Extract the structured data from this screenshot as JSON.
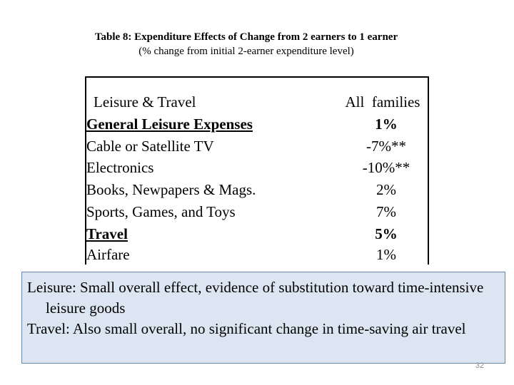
{
  "title": {
    "line1": "Table 8: Expenditure Effects of Change from 2 earners to 1 earner",
    "line2": "(% change from initial 2-earner expenditure level)"
  },
  "table": {
    "header_label": "Leisure & Travel",
    "header_value": "All  families",
    "rows": [
      {
        "label": "General Leisure Expenses",
        "value": "1%"
      },
      {
        "label": "Cable or Satellite TV",
        "value": "-7%**"
      },
      {
        "label": "Electronics",
        "value": "-10%**"
      },
      {
        "label": "Books, Newpapers & Mags.",
        "value": "2%"
      },
      {
        "label": "Sports, Games, and Toys",
        "value": "7%"
      },
      {
        "label": "Travel",
        "value": "5%"
      },
      {
        "label": "Airfare",
        "value": "1%"
      }
    ]
  },
  "notes": {
    "line1": "Leisure: Small overall effect, evidence of substitution toward time-intensive leisure goods",
    "line2": "Travel:  Also small overall, no significant change in time-saving air travel"
  },
  "page_number": "32"
}
